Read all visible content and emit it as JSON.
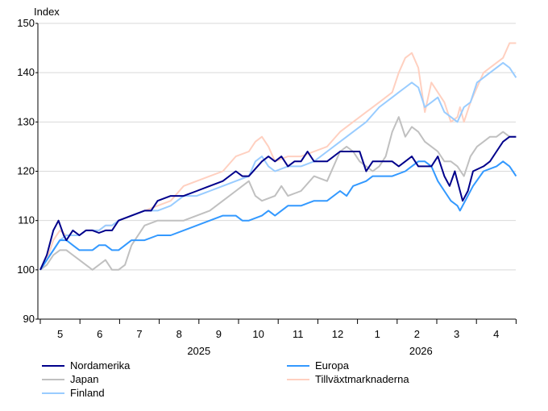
{
  "chart_data": {
    "type": "line",
    "ylabel": "Index",
    "ylim": [
      90,
      150
    ],
    "yticks": [
      90,
      100,
      110,
      120,
      130,
      140,
      150
    ],
    "x_month_labels": [
      "5",
      "6",
      "7",
      "8",
      "9",
      "10",
      "11",
      "12",
      "1",
      "2",
      "3",
      "4"
    ],
    "x_year_labels": [
      {
        "label": "2025",
        "month_index": 4
      },
      {
        "label": "2026",
        "month_index": 9.6
      }
    ],
    "x_unit": "month index (0 = start of May 2025, 12 = end of April 2026)",
    "grid": true,
    "legend_position": "bottom",
    "series": [
      {
        "name": "Nordamerika",
        "color": "#00008B",
        "points": [
          [
            0,
            100
          ],
          [
            0.25,
            103
          ],
          [
            0.5,
            108
          ],
          [
            0.7,
            110
          ],
          [
            0.9,
            107
          ],
          [
            1,
            106
          ],
          [
            1.25,
            108
          ],
          [
            1.5,
            107
          ],
          [
            1.75,
            108
          ],
          [
            2,
            108
          ],
          [
            2.25,
            107.5
          ],
          [
            2.5,
            108
          ],
          [
            2.75,
            108
          ],
          [
            3,
            110
          ],
          [
            3.5,
            111
          ],
          [
            4,
            112
          ],
          [
            4.25,
            112
          ],
          [
            4.5,
            114
          ],
          [
            5,
            115
          ],
          [
            5.5,
            115
          ],
          [
            6,
            116
          ],
          [
            6.5,
            117
          ],
          [
            7,
            118
          ],
          [
            7.5,
            120
          ],
          [
            7.75,
            119
          ],
          [
            8,
            119
          ],
          [
            8.5,
            122
          ],
          [
            8.75,
            123
          ],
          [
            9,
            122
          ],
          [
            9.25,
            123
          ],
          [
            9.5,
            121
          ],
          [
            9.75,
            122
          ],
          [
            10,
            122
          ],
          [
            10.25,
            124
          ],
          [
            10.5,
            122
          ],
          [
            10.75,
            122
          ],
          [
            11,
            122
          ],
          [
            11.5,
            124
          ],
          [
            11.75,
            124
          ],
          [
            12,
            124
          ],
          [
            12.25,
            124
          ],
          [
            12.5,
            120
          ],
          [
            12.75,
            122
          ],
          [
            13,
            122
          ],
          [
            13.5,
            122
          ],
          [
            13.75,
            121
          ],
          [
            14,
            122
          ],
          [
            14.25,
            123
          ],
          [
            14.5,
            121
          ],
          [
            14.75,
            121
          ],
          [
            15,
            121
          ],
          [
            15.25,
            123
          ],
          [
            15.5,
            119
          ],
          [
            15.7,
            117
          ],
          [
            15.9,
            120
          ],
          [
            16,
            118
          ],
          [
            16.2,
            114
          ],
          [
            16.4,
            116
          ],
          [
            16.6,
            120
          ],
          [
            17,
            121
          ],
          [
            17.25,
            122
          ],
          [
            17.5,
            124
          ],
          [
            17.75,
            126
          ],
          [
            18,
            127
          ],
          [
            18.25,
            127
          ]
        ]
      },
      {
        "name": "Europa",
        "color": "#3399FF",
        "points": [
          [
            0,
            100
          ],
          [
            0.25,
            102
          ],
          [
            0.5,
            104
          ],
          [
            0.75,
            106
          ],
          [
            1,
            106
          ],
          [
            1.25,
            105
          ],
          [
            1.5,
            104
          ],
          [
            1.75,
            104
          ],
          [
            2,
            104
          ],
          [
            2.25,
            105
          ],
          [
            2.5,
            105
          ],
          [
            2.75,
            104
          ],
          [
            3,
            104
          ],
          [
            3.5,
            106
          ],
          [
            4,
            106
          ],
          [
            4.5,
            107
          ],
          [
            5,
            107
          ],
          [
            5.5,
            108
          ],
          [
            6,
            109
          ],
          [
            6.5,
            110
          ],
          [
            7,
            111
          ],
          [
            7.5,
            111
          ],
          [
            7.75,
            110
          ],
          [
            8,
            110
          ],
          [
            8.5,
            111
          ],
          [
            8.75,
            112
          ],
          [
            9,
            111
          ],
          [
            9.5,
            113
          ],
          [
            10,
            113
          ],
          [
            10.5,
            114
          ],
          [
            11,
            114
          ],
          [
            11.5,
            116
          ],
          [
            11.75,
            115
          ],
          [
            12,
            117
          ],
          [
            12.5,
            118
          ],
          [
            12.75,
            119
          ],
          [
            13,
            119
          ],
          [
            13.5,
            119
          ],
          [
            14,
            120
          ],
          [
            14.5,
            122
          ],
          [
            14.75,
            122
          ],
          [
            15,
            121
          ],
          [
            15.25,
            118
          ],
          [
            15.5,
            116
          ],
          [
            15.75,
            114
          ],
          [
            16,
            113
          ],
          [
            16.1,
            112
          ],
          [
            16.3,
            114
          ],
          [
            16.6,
            117
          ],
          [
            17,
            120
          ],
          [
            17.5,
            121
          ],
          [
            17.75,
            122
          ],
          [
            18,
            121
          ],
          [
            18.25,
            119
          ]
        ]
      },
      {
        "name": "Japan",
        "color": "#C0C0C0",
        "points": [
          [
            0,
            100
          ],
          [
            0.25,
            101
          ],
          [
            0.5,
            103
          ],
          [
            0.75,
            104
          ],
          [
            1,
            104
          ],
          [
            1.25,
            103
          ],
          [
            1.5,
            102
          ],
          [
            1.75,
            101
          ],
          [
            2,
            100
          ],
          [
            2.25,
            101
          ],
          [
            2.5,
            102
          ],
          [
            2.75,
            100
          ],
          [
            3,
            100
          ],
          [
            3.25,
            101
          ],
          [
            3.5,
            105
          ],
          [
            4,
            109
          ],
          [
            4.5,
            110
          ],
          [
            5,
            110
          ],
          [
            5.5,
            110
          ],
          [
            6,
            111
          ],
          [
            6.5,
            112
          ],
          [
            7,
            114
          ],
          [
            7.5,
            116
          ],
          [
            7.75,
            117
          ],
          [
            8,
            118
          ],
          [
            8.25,
            115
          ],
          [
            8.5,
            114
          ],
          [
            9,
            115
          ],
          [
            9.25,
            117
          ],
          [
            9.5,
            115
          ],
          [
            10,
            116
          ],
          [
            10.5,
            119
          ],
          [
            11,
            118
          ],
          [
            11.5,
            124
          ],
          [
            11.75,
            125
          ],
          [
            12,
            124
          ],
          [
            12.25,
            122
          ],
          [
            12.5,
            121
          ],
          [
            12.75,
            120
          ],
          [
            13,
            121
          ],
          [
            13.25,
            123
          ],
          [
            13.5,
            128
          ],
          [
            13.75,
            131
          ],
          [
            14,
            127
          ],
          [
            14.25,
            129
          ],
          [
            14.5,
            128
          ],
          [
            14.75,
            126
          ],
          [
            15,
            125
          ],
          [
            15.25,
            124
          ],
          [
            15.5,
            122
          ],
          [
            15.75,
            122
          ],
          [
            16,
            121
          ],
          [
            16.25,
            119
          ],
          [
            16.5,
            123
          ],
          [
            16.75,
            125
          ],
          [
            17,
            126
          ],
          [
            17.25,
            127
          ],
          [
            17.5,
            127
          ],
          [
            17.75,
            128
          ],
          [
            18,
            127
          ],
          [
            18.25,
            127
          ]
        ]
      },
      {
        "name": "Tillväxtmarknaderna",
        "color": "#FFD0C0",
        "points": [
          [
            0,
            100
          ],
          [
            0.25,
            102
          ],
          [
            0.5,
            106
          ],
          [
            0.75,
            108
          ],
          [
            1,
            107
          ],
          [
            1.25,
            107
          ],
          [
            1.5,
            107
          ],
          [
            1.75,
            108
          ],
          [
            2,
            108
          ],
          [
            2.25,
            108
          ],
          [
            2.5,
            109
          ],
          [
            2.75,
            109
          ],
          [
            3,
            110
          ],
          [
            3.5,
            111
          ],
          [
            4,
            112
          ],
          [
            4.5,
            113
          ],
          [
            5,
            114
          ],
          [
            5.5,
            117
          ],
          [
            6,
            118
          ],
          [
            6.5,
            119
          ],
          [
            7,
            120
          ],
          [
            7.5,
            123
          ],
          [
            8,
            124
          ],
          [
            8.25,
            126
          ],
          [
            8.5,
            127
          ],
          [
            8.75,
            125
          ],
          [
            9,
            122
          ],
          [
            9.5,
            123
          ],
          [
            10,
            123
          ],
          [
            10.5,
            124
          ],
          [
            11,
            125
          ],
          [
            11.5,
            128
          ],
          [
            12,
            130
          ],
          [
            12.5,
            132
          ],
          [
            13,
            134
          ],
          [
            13.5,
            136
          ],
          [
            13.75,
            140
          ],
          [
            14,
            143
          ],
          [
            14.25,
            144
          ],
          [
            14.5,
            141
          ],
          [
            14.75,
            132
          ],
          [
            15,
            138
          ],
          [
            15.25,
            136
          ],
          [
            15.5,
            134
          ],
          [
            15.75,
            130
          ],
          [
            16,
            131
          ],
          [
            16.1,
            133
          ],
          [
            16.25,
            130
          ],
          [
            16.5,
            134
          ],
          [
            16.75,
            137
          ],
          [
            17,
            140
          ],
          [
            17.25,
            141
          ],
          [
            17.5,
            142
          ],
          [
            17.75,
            143
          ],
          [
            18,
            146
          ],
          [
            18.25,
            146
          ]
        ]
      },
      {
        "name": "Finland",
        "color": "#99CCFF",
        "points": [
          [
            0,
            100
          ],
          [
            0.25,
            102
          ],
          [
            0.5,
            104
          ],
          [
            0.75,
            106
          ],
          [
            1,
            107
          ],
          [
            1.25,
            107
          ],
          [
            1.5,
            107
          ],
          [
            1.75,
            108
          ],
          [
            2,
            108
          ],
          [
            2.25,
            108
          ],
          [
            2.5,
            109
          ],
          [
            2.75,
            109
          ],
          [
            3,
            110
          ],
          [
            3.5,
            111
          ],
          [
            4,
            112
          ],
          [
            4.5,
            112
          ],
          [
            5,
            113
          ],
          [
            5.5,
            115
          ],
          [
            6,
            115
          ],
          [
            6.5,
            116
          ],
          [
            7,
            117
          ],
          [
            7.5,
            118
          ],
          [
            8,
            119
          ],
          [
            8.25,
            122
          ],
          [
            8.5,
            123
          ],
          [
            8.75,
            121
          ],
          [
            9,
            120
          ],
          [
            9.5,
            121
          ],
          [
            10,
            121
          ],
          [
            10.5,
            122
          ],
          [
            11,
            124
          ],
          [
            11.5,
            126
          ],
          [
            12,
            128
          ],
          [
            12.5,
            130
          ],
          [
            13,
            133
          ],
          [
            13.5,
            135
          ],
          [
            13.75,
            136
          ],
          [
            14,
            137
          ],
          [
            14.25,
            138
          ],
          [
            14.5,
            137
          ],
          [
            14.75,
            133
          ],
          [
            15,
            134
          ],
          [
            15.25,
            135
          ],
          [
            15.5,
            132
          ],
          [
            15.75,
            131
          ],
          [
            16,
            130
          ],
          [
            16.25,
            133
          ],
          [
            16.5,
            134
          ],
          [
            16.75,
            138
          ],
          [
            17,
            139
          ],
          [
            17.25,
            140
          ],
          [
            17.5,
            141
          ],
          [
            17.75,
            142
          ],
          [
            18,
            141
          ],
          [
            18.25,
            139
          ]
        ]
      }
    ]
  }
}
